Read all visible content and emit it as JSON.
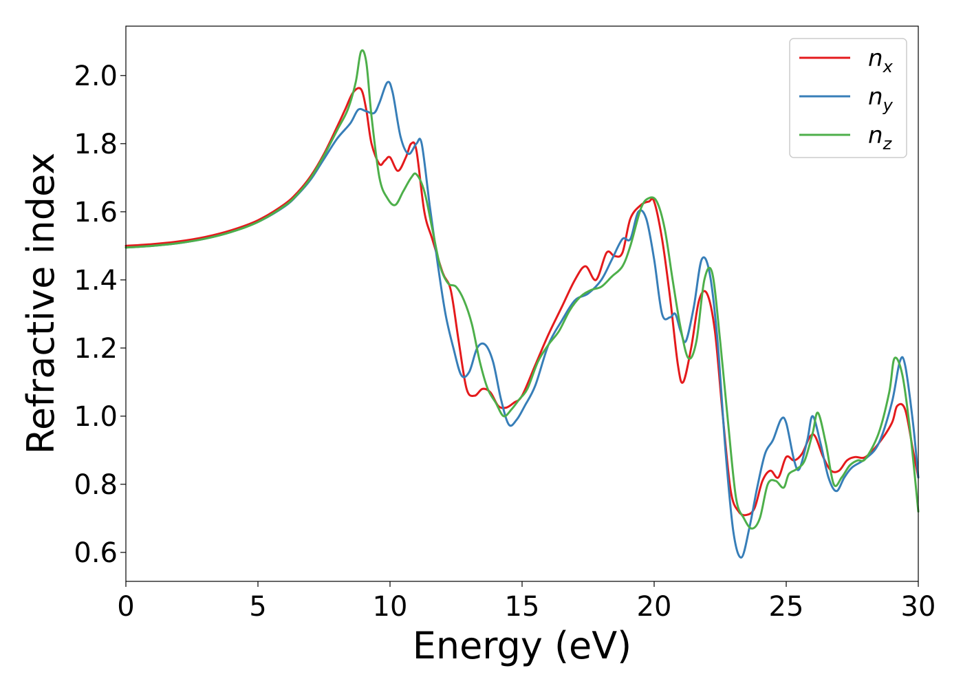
{
  "chart_data": {
    "type": "line",
    "title": "",
    "xlabel": "Energy (eV)",
    "ylabel": "Refractive index",
    "xlim": [
      0,
      30
    ],
    "ylim": [
      0.515,
      2.145
    ],
    "xticks": [
      0,
      5,
      10,
      15,
      20,
      25,
      30
    ],
    "xtick_labels": [
      "0",
      "5",
      "10",
      "15",
      "20",
      "25",
      "30"
    ],
    "yticks": [
      0.6,
      0.8,
      1.0,
      1.2,
      1.4,
      1.6,
      1.8,
      2.0
    ],
    "ytick_labels": [
      "0.6",
      "0.8",
      "1.0",
      "1.2",
      "1.4",
      "1.6",
      "1.8",
      "2.0"
    ],
    "grid": false,
    "legend_position": "top-right",
    "series": [
      {
        "name": "n",
        "subscript": "x",
        "color": "#e41a1c",
        "x": [
          0,
          1,
          2,
          3,
          4,
          5,
          6,
          6.5,
          7,
          7.5,
          8,
          8.3,
          8.6,
          8.9,
          9.1,
          9.3,
          9.6,
          9.8,
          10.0,
          10.3,
          10.6,
          10.8,
          11.0,
          11.3,
          11.6,
          12.0,
          12.3,
          12.6,
          12.9,
          13.2,
          13.5,
          13.8,
          14.1,
          14.4,
          14.7,
          15.0,
          15.5,
          16.0,
          16.5,
          17.0,
          17.4,
          17.8,
          18.2,
          18.5,
          18.8,
          19.1,
          19.5,
          19.8,
          20.0,
          20.3,
          20.6,
          20.9,
          21.1,
          21.4,
          21.7,
          22.0,
          22.3,
          22.6,
          22.9,
          23.2,
          23.5,
          23.8,
          24.1,
          24.4,
          24.7,
          25.0,
          25.3,
          25.6,
          25.9,
          26.1,
          26.4,
          26.7,
          27.0,
          27.3,
          27.6,
          28.0,
          28.5,
          29.0,
          29.2,
          29.5,
          29.8,
          30.0
        ],
        "y": [
          1.5,
          1.505,
          1.513,
          1.526,
          1.546,
          1.575,
          1.622,
          1.657,
          1.705,
          1.77,
          1.85,
          1.9,
          1.95,
          1.96,
          1.9,
          1.8,
          1.74,
          1.75,
          1.76,
          1.72,
          1.76,
          1.8,
          1.78,
          1.6,
          1.52,
          1.42,
          1.37,
          1.22,
          1.08,
          1.06,
          1.08,
          1.07,
          1.03,
          1.025,
          1.04,
          1.06,
          1.15,
          1.24,
          1.32,
          1.4,
          1.44,
          1.4,
          1.48,
          1.47,
          1.48,
          1.58,
          1.62,
          1.63,
          1.63,
          1.52,
          1.35,
          1.15,
          1.1,
          1.2,
          1.34,
          1.36,
          1.25,
          1.0,
          0.78,
          0.72,
          0.71,
          0.73,
          0.81,
          0.84,
          0.82,
          0.88,
          0.87,
          0.89,
          0.94,
          0.94,
          0.88,
          0.84,
          0.84,
          0.87,
          0.88,
          0.88,
          0.92,
          0.98,
          1.03,
          1.02,
          0.9,
          0.82
        ]
      },
      {
        "name": "n",
        "subscript": "y",
        "color": "#377eb8",
        "x": [
          0,
          1,
          2,
          3,
          4,
          5,
          6,
          6.5,
          7,
          7.5,
          8,
          8.5,
          8.8,
          9.1,
          9.4,
          9.6,
          9.9,
          10.1,
          10.4,
          10.7,
          11.0,
          11.2,
          11.5,
          11.8,
          12.1,
          12.4,
          12.7,
          13.0,
          13.3,
          13.6,
          13.9,
          14.2,
          14.5,
          14.8,
          15.1,
          15.5,
          16.0,
          16.5,
          17.0,
          17.5,
          18.0,
          18.4,
          18.8,
          19.1,
          19.4,
          19.7,
          20.0,
          20.3,
          20.6,
          20.8,
          21.0,
          21.2,
          21.5,
          21.8,
          22.1,
          22.4,
          22.7,
          23.0,
          23.3,
          23.6,
          23.9,
          24.2,
          24.5,
          24.8,
          25.0,
          25.3,
          25.5,
          25.8,
          26.0,
          26.3,
          26.6,
          26.9,
          27.2,
          27.5,
          28.0,
          28.5,
          29.0,
          29.3,
          29.5,
          29.8,
          30.0
        ],
        "y": [
          1.495,
          1.5,
          1.508,
          1.521,
          1.541,
          1.57,
          1.615,
          1.65,
          1.695,
          1.755,
          1.815,
          1.86,
          1.9,
          1.895,
          1.89,
          1.92,
          1.98,
          1.95,
          1.82,
          1.77,
          1.8,
          1.8,
          1.62,
          1.45,
          1.3,
          1.2,
          1.12,
          1.13,
          1.2,
          1.21,
          1.16,
          1.05,
          0.975,
          0.99,
          1.03,
          1.09,
          1.21,
          1.28,
          1.34,
          1.36,
          1.4,
          1.46,
          1.52,
          1.52,
          1.6,
          1.58,
          1.46,
          1.3,
          1.29,
          1.3,
          1.25,
          1.22,
          1.32,
          1.46,
          1.42,
          1.22,
          0.9,
          0.66,
          0.585,
          0.67,
          0.79,
          0.89,
          0.93,
          0.99,
          0.98,
          0.87,
          0.845,
          0.93,
          1.0,
          0.92,
          0.82,
          0.78,
          0.82,
          0.85,
          0.875,
          0.92,
          1.04,
          1.16,
          1.15,
          0.98,
          0.82
        ]
      },
      {
        "name": "n",
        "subscript": "z",
        "color": "#4daf4a",
        "x": [
          0,
          1,
          2,
          3,
          4,
          5,
          6,
          6.5,
          7,
          7.5,
          8,
          8.4,
          8.7,
          8.9,
          9.1,
          9.3,
          9.6,
          9.9,
          10.2,
          10.5,
          10.8,
          11.0,
          11.3,
          11.6,
          11.9,
          12.2,
          12.5,
          12.8,
          13.1,
          13.4,
          13.7,
          14.0,
          14.3,
          14.6,
          14.9,
          15.2,
          15.6,
          16.0,
          16.4,
          16.8,
          17.2,
          17.6,
          18.0,
          18.4,
          18.8,
          19.1,
          19.5,
          19.8,
          20.1,
          20.4,
          20.7,
          21.0,
          21.3,
          21.6,
          21.9,
          22.2,
          22.5,
          22.8,
          23.1,
          23.4,
          23.7,
          24.0,
          24.3,
          24.6,
          24.9,
          25.1,
          25.4,
          25.7,
          26.0,
          26.2,
          26.5,
          26.8,
          27.1,
          27.4,
          27.7,
          28.0,
          28.5,
          28.9,
          29.1,
          29.4,
          29.7,
          30.0
        ],
        "y": [
          1.495,
          1.5,
          1.508,
          1.521,
          1.541,
          1.57,
          1.617,
          1.652,
          1.7,
          1.765,
          1.84,
          1.9,
          1.98,
          2.07,
          2.04,
          1.88,
          1.7,
          1.64,
          1.62,
          1.66,
          1.7,
          1.71,
          1.66,
          1.55,
          1.44,
          1.39,
          1.38,
          1.34,
          1.27,
          1.16,
          1.08,
          1.04,
          1.0,
          1.02,
          1.05,
          1.08,
          1.16,
          1.21,
          1.25,
          1.31,
          1.35,
          1.37,
          1.38,
          1.41,
          1.44,
          1.5,
          1.61,
          1.64,
          1.63,
          1.55,
          1.4,
          1.26,
          1.17,
          1.22,
          1.4,
          1.42,
          1.22,
          0.98,
          0.76,
          0.7,
          0.67,
          0.7,
          0.8,
          0.81,
          0.79,
          0.83,
          0.845,
          0.87,
          0.95,
          1.01,
          0.92,
          0.8,
          0.82,
          0.855,
          0.87,
          0.875,
          0.95,
          1.07,
          1.17,
          1.12,
          0.95,
          0.72
        ]
      }
    ]
  }
}
